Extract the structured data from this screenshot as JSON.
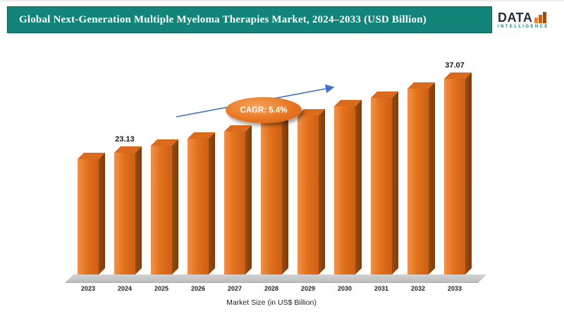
{
  "header": {
    "title": "Global Next-Generation Multiple Myeloma Therapies Market, 2024–2033 (USD Billion)",
    "logo": {
      "text": "DATA",
      "subtext": "INTELLIGENCE"
    }
  },
  "chart_data": {
    "type": "bar",
    "title": "Global Next-Generation Multiple Myeloma Therapies Market, 2024–2033 (USD Billion)",
    "categories": [
      "2023",
      "2024",
      "2025",
      "2026",
      "2027",
      "2028",
      "2029",
      "2030",
      "2031",
      "2032",
      "2033"
    ],
    "values": [
      21.9,
      23.13,
      24.4,
      25.7,
      27.1,
      28.6,
      30.1,
      31.8,
      33.5,
      35.2,
      37.07
    ],
    "labeled_values": {
      "2024": "23.13",
      "2033": "37.07"
    },
    "annotation": "CAGR: 5.4%",
    "xlabel": "Market Size (in US$ Billion)",
    "ylabel": "",
    "ylim": [
      0,
      40
    ],
    "grid": false,
    "legend": "none",
    "bar_color": "#E2711D",
    "bar_side_color": "#8E4510",
    "bar_top_color": "#D96A1E",
    "annotation_color": "#E87722",
    "arrow_color": "#4472C4",
    "header_color": "#12847A"
  }
}
